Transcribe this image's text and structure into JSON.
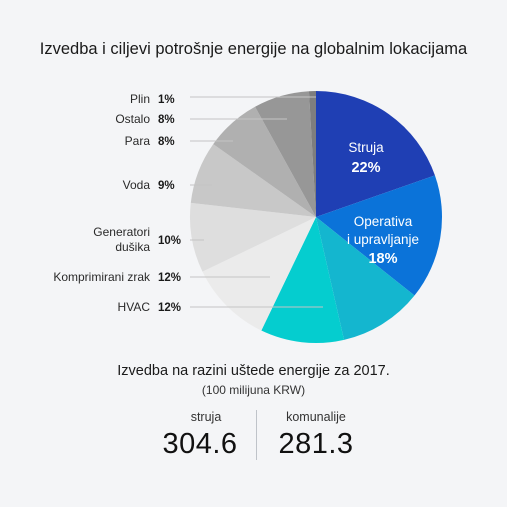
{
  "chart_data": {
    "type": "pie",
    "title": "Izvedba i ciljevi potrošnje energije na globalnim lokacijama",
    "slices": [
      {
        "label": "Struja",
        "value": 22,
        "display": "22%",
        "color": "#1f3fb4",
        "label_position": "inside"
      },
      {
        "label": "Operativa i upravljanje",
        "label_lines": [
          "Operativa",
          "i upravljanje"
        ],
        "value": 18,
        "display": "18%",
        "color": "#0b73d9",
        "label_position": "inside"
      },
      {
        "label": "",
        "value": 12,
        "display": "",
        "color": "#14b6cf",
        "label_position": "none"
      },
      {
        "label": "HVAC",
        "value": 12,
        "display": "12%",
        "color": "#05cdcf",
        "label_position": "outside"
      },
      {
        "label": "Komprimirani zrak",
        "value": 12,
        "display": "12%",
        "color": "#ebebeb",
        "label_position": "outside"
      },
      {
        "label": "Generatori dušika",
        "label_lines": [
          "Generatori",
          "dušika"
        ],
        "value": 10,
        "display": "10%",
        "color": "#dedede",
        "label_position": "outside"
      },
      {
        "label": "Voda",
        "value": 9,
        "display": "9%",
        "color": "#c8c8c8",
        "label_position": "outside"
      },
      {
        "label": "Para",
        "value": 8,
        "display": "8%",
        "color": "#b0b0b0",
        "label_position": "outside"
      },
      {
        "label": "Ostalo",
        "value": 8,
        "display": "8%",
        "color": "#979797",
        "label_position": "outside"
      },
      {
        "label": "Plin",
        "value": 1,
        "display": "1%",
        "color": "#7e7e7e",
        "label_position": "outside"
      }
    ]
  },
  "summary": {
    "title": "Izvedba na razini uštede energije za 2017.",
    "note": "(100 milijuna KRW)",
    "stats": [
      {
        "label": "struja",
        "value": "304.6"
      },
      {
        "label": "komunalije",
        "value": "281.3"
      }
    ]
  }
}
